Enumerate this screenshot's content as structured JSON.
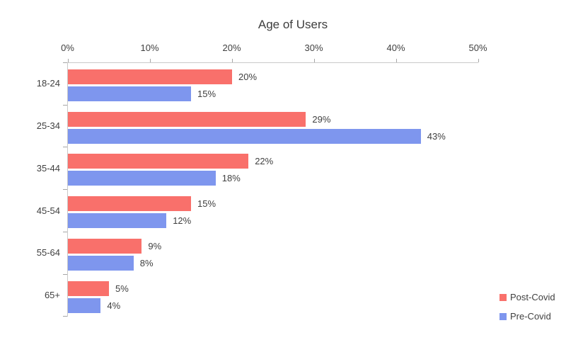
{
  "chart_data": {
    "type": "bar",
    "orientation": "horizontal",
    "title": "Age of Users",
    "categories": [
      "18-24",
      "25-34",
      "35-44",
      "45-54",
      "55-64",
      "65+"
    ],
    "series": [
      {
        "name": "Post-Covid",
        "color": "#F9706B",
        "values": [
          20,
          29,
          22,
          15,
          9,
          5
        ]
      },
      {
        "name": "Pre-Covid",
        "color": "#7E96EE",
        "values": [
          15,
          43,
          18,
          12,
          8,
          4
        ]
      }
    ],
    "value_axis": {
      "position": "top",
      "min": 0,
      "max": 50,
      "tick_labels": [
        "0%",
        "10%",
        "20%",
        "30%",
        "40%",
        "50%"
      ]
    },
    "data_label_suffix": "%",
    "grid": false,
    "legend_position": "bottom-right",
    "colors": {
      "text": "#404040",
      "axis_line": "#C9C9C9",
      "tick": "#A6A6A6",
      "background": "#FFFFFF"
    }
  }
}
